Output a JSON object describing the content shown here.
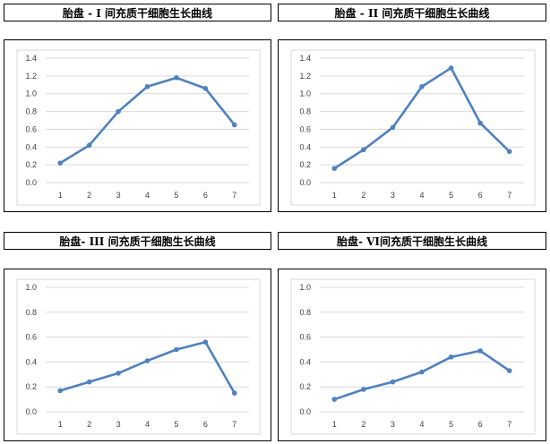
{
  "panels": [
    {
      "title": "胎盘 - I 间充质干细胞生长曲线"
    },
    {
      "title": "胎盘 - II 间充质干细胞生长曲线"
    },
    {
      "title": "胎盘- III 间充质干细胞生长曲线"
    },
    {
      "title": "胎盘- VI间充质干细胞生长曲线"
    }
  ],
  "colors": {
    "line": "#4F81BD",
    "grid": "#D9D9D9",
    "plot_border": "#D9D9D9"
  },
  "chart_data": [
    {
      "type": "line",
      "title": "胎盘 - I 间充质干细胞生长曲线",
      "categories": [
        "1",
        "2",
        "3",
        "4",
        "5",
        "6",
        "7"
      ],
      "values": [
        0.22,
        0.42,
        0.8,
        1.08,
        1.18,
        1.06,
        0.65
      ],
      "ylim": [
        0,
        1.4
      ],
      "yticks": [
        "0.0",
        "0.2",
        "0.4",
        "0.6",
        "0.8",
        "1.0",
        "1.2",
        "1.4"
      ],
      "grid": true,
      "legend": "none"
    },
    {
      "type": "line",
      "title": "胎盘 - II 间充质干细胞生长曲线",
      "categories": [
        "1",
        "2",
        "3",
        "4",
        "5",
        "6",
        "7"
      ],
      "values": [
        0.16,
        0.37,
        0.62,
        1.08,
        1.29,
        0.67,
        0.35
      ],
      "ylim": [
        0,
        1.4
      ],
      "yticks": [
        "0.0",
        "0.2",
        "0.4",
        "0.6",
        "0.8",
        "1.0",
        "1.2",
        "1.4"
      ],
      "grid": true,
      "legend": "none"
    },
    {
      "type": "line",
      "title": "胎盘- III 间充质干细胞生长曲线",
      "categories": [
        "1",
        "2",
        "3",
        "4",
        "5",
        "6",
        "7"
      ],
      "values": [
        0.17,
        0.24,
        0.31,
        0.41,
        0.5,
        0.56,
        0.15
      ],
      "ylim": [
        0,
        1.0
      ],
      "yticks": [
        "0.0",
        "0.2",
        "0.4",
        "0.6",
        "0.8",
        "1.0"
      ],
      "grid": true,
      "legend": "none"
    },
    {
      "type": "line",
      "title": "胎盘- VI间充质干细胞生长曲线",
      "categories": [
        "1",
        "2",
        "3",
        "4",
        "5",
        "6",
        "7"
      ],
      "values": [
        0.1,
        0.18,
        0.24,
        0.32,
        0.44,
        0.49,
        0.33
      ],
      "ylim": [
        0,
        1.0
      ],
      "yticks": [
        "0.0",
        "0.2",
        "0.4",
        "0.6",
        "0.8",
        "1.0"
      ],
      "grid": true,
      "legend": "none"
    }
  ]
}
